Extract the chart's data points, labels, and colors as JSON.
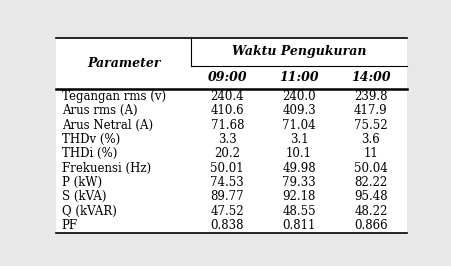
{
  "header_main": "Waktu Pengukuran",
  "header_param": "Parameter",
  "col_headers": [
    "09:00",
    "11:00",
    "14:00"
  ],
  "rows": [
    [
      "Tegangan rms (v)",
      "240.4",
      "240.0",
      "239.8"
    ],
    [
      "Arus rms (A)",
      "410.6",
      "409.3",
      "417.9"
    ],
    [
      "Arus Netral (A)",
      "71.68",
      "71.04",
      "75.52"
    ],
    [
      "THDv (%)",
      "3.3",
      "3.1",
      "3.6"
    ],
    [
      "THDi (%)",
      "20.2",
      "10.1",
      "11"
    ],
    [
      "Frekuensi (Hz)",
      "50.01",
      "49.98",
      "50.04"
    ],
    [
      "P (kW)",
      "74.53",
      "79.33",
      "82.22"
    ],
    [
      "S (kVA)",
      "89.77",
      "92.18",
      "95.48"
    ],
    [
      "Q (kVAR)",
      "47.52",
      "48.55",
      "48.22"
    ],
    [
      "PF",
      "0.838",
      "0.811",
      "0.866"
    ]
  ],
  "bg_color": "#e8e8e8",
  "table_bg": "#ffffff",
  "font_size": 8.5,
  "header_font_size": 9.0
}
